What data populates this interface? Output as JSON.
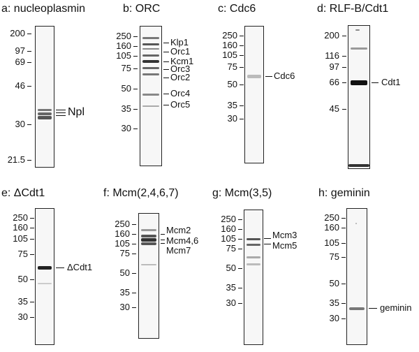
{
  "panels": {
    "a": {
      "title": "a: nucleoplasmin",
      "markers": [
        "200",
        "97",
        "69",
        "46",
        "30",
        "21.5"
      ],
      "labels": [
        "Npl"
      ]
    },
    "b": {
      "title": "b: ORC",
      "markers": [
        "250",
        "160",
        "105",
        "75",
        "50",
        "35",
        "30"
      ],
      "labels": [
        "Klp1",
        "Orc1",
        "Kcm1",
        "Orc3",
        "Orc2",
        "Orc4",
        "Orc5"
      ]
    },
    "c": {
      "title": "c: Cdc6",
      "markers": [
        "250",
        "160",
        "105",
        "75",
        "50",
        "35",
        "30"
      ],
      "labels": [
        "Cdc6"
      ]
    },
    "d": {
      "title": "d: RLF-B/Cdt1",
      "markers": [
        "200",
        "116",
        "97",
        "66",
        "45"
      ],
      "labels": [
        "Cdt1"
      ]
    },
    "e": {
      "title": "e: ΔCdt1",
      "markers": [
        "250",
        "160",
        "105",
        "75",
        "50",
        "35",
        "30"
      ],
      "labels": [
        "ΔCdt1"
      ]
    },
    "f": {
      "title": "f: Mcm(2,4,6,7)",
      "markers": [
        "250",
        "160",
        "105",
        "75",
        "50",
        "35",
        "30"
      ],
      "labels": [
        "Mcm2",
        "Mcm4,6",
        "Mcm7"
      ]
    },
    "g": {
      "title": "g: Mcm(3,5)",
      "markers": [
        "250",
        "160",
        "105",
        "75",
        "50",
        "35",
        "30"
      ],
      "labels": [
        "Mcm3",
        "Mcm5"
      ]
    },
    "h": {
      "title": "h: geminin",
      "markers": [
        "250",
        "160",
        "105",
        "75",
        "50",
        "35",
        "30"
      ],
      "labels": [
        "geminin"
      ]
    }
  }
}
